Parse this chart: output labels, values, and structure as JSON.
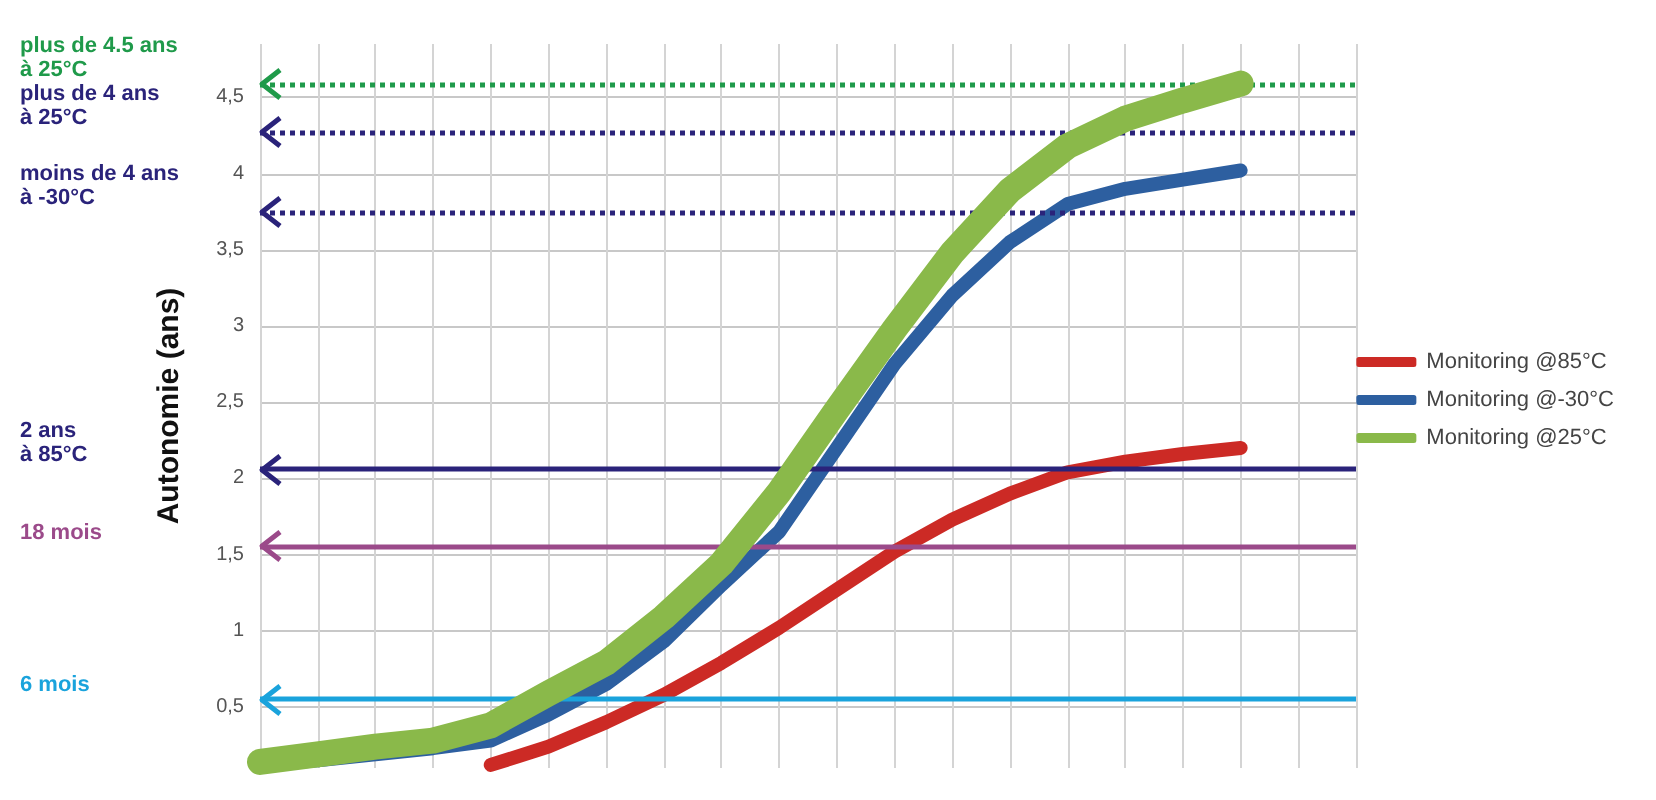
{
  "chart_data": {
    "type": "line",
    "ylabel": "Autonomie (ans)",
    "categories": [
      null,
      null,
      null,
      null,
      null,
      null,
      null,
      null,
      null,
      null,
      null,
      null,
      null,
      null,
      null,
      null,
      null,
      null,
      null,
      null
    ],
    "series": [
      {
        "name": "Monitoring @85°C",
        "color": "#cc2a25",
        "values": [
          null,
          null,
          null,
          null,
          0.12,
          0.24,
          0.4,
          0.58,
          0.79,
          1.02,
          1.27,
          1.52,
          1.73,
          1.9,
          2.04,
          2.11,
          2.16,
          2.2,
          null,
          null
        ]
      },
      {
        "name": "Monitoring @-30°C",
        "color": "#2d5fa0",
        "values": [
          0.12,
          0.15,
          0.19,
          0.23,
          0.28,
          0.45,
          0.65,
          0.93,
          1.3,
          1.65,
          2.2,
          2.75,
          3.2,
          3.55,
          3.8,
          3.9,
          3.96,
          4.02,
          null,
          null
        ]
      },
      {
        "name": "Monitoring @25°C",
        "color": "#8ab94a",
        "values": [
          0.14,
          0.19,
          0.24,
          0.28,
          0.38,
          0.59,
          0.79,
          1.09,
          1.44,
          1.91,
          2.45,
          2.98,
          3.48,
          3.89,
          4.18,
          4.36,
          4.48,
          4.59,
          null,
          null
        ]
      }
    ],
    "ylim": [
      0.1,
      4.85
    ],
    "yticks": [
      {
        "value": 0.5,
        "label": "0,5"
      },
      1,
      {
        "value": 1.5,
        "label": "1,5"
      },
      2,
      {
        "value": 2.5,
        "label": "2,5"
      },
      3,
      {
        "value": 3.5,
        "label": "3,5"
      },
      4,
      {
        "value": 4.5,
        "label": "4,5"
      }
    ],
    "grid": true,
    "legend": "right",
    "line_style": "solid",
    "ref_lines": [
      {
        "axis": "y",
        "value": 4.59,
        "label": "plus de 4.5 ans\nà 25°C",
        "color": "#1f9a4a",
        "line_style": "dotted"
      },
      {
        "axis": "y",
        "value": 4.27,
        "label": "plus de 4 ans\nà 25°C",
        "color": "#2a237a",
        "line_style": "dotted"
      },
      {
        "axis": "y",
        "value": 3.75,
        "label": "moins de 4 ans\nà -30°C",
        "color": "#2a237a",
        "line_style": "dotted"
      },
      {
        "axis": "y",
        "value": 2.06,
        "label": "2 ans\nà 85°C",
        "color": "#2a237a",
        "line_style": "solid"
      },
      {
        "axis": "y",
        "value": 1.55,
        "label": "18 mois",
        "color": "#9b4a8a",
        "line_style": "solid"
      },
      {
        "axis": "y",
        "value": 0.55,
        "label": "6 mois",
        "color": "#1aa3dc",
        "line_style": "solid"
      }
    ]
  }
}
